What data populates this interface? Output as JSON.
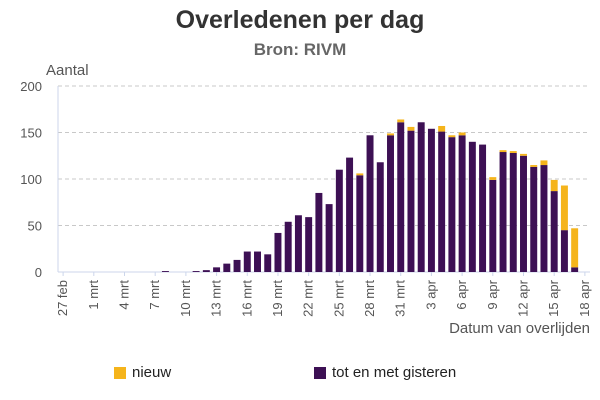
{
  "chart_data": {
    "type": "bar",
    "stacked": true,
    "title": "Overledenen per dag",
    "subtitle": "Bron: RIVM",
    "ylabel": "Aantal",
    "xlabel": "Datum van overlijden",
    "ylim": [
      0,
      200
    ],
    "yticks": [
      0,
      50,
      100,
      150,
      200
    ],
    "xtick_every": 3,
    "categories": [
      "27 feb",
      "28 feb",
      "29 feb",
      "1 mrt",
      "2 mrt",
      "3 mrt",
      "4 mrt",
      "5 mrt",
      "6 mrt",
      "7 mrt",
      "8 mrt",
      "9 mrt",
      "10 mrt",
      "11 mrt",
      "12 mrt",
      "13 mrt",
      "14 mrt",
      "15 mrt",
      "16 mrt",
      "17 mrt",
      "18 mrt",
      "19 mrt",
      "20 mrt",
      "21 mrt",
      "22 mrt",
      "23 mrt",
      "24 mrt",
      "25 mrt",
      "26 mrt",
      "27 mrt",
      "28 mrt",
      "29 mrt",
      "30 mrt",
      "31 mrt",
      "1 apr",
      "2 apr",
      "3 apr",
      "4 apr",
      "5 apr",
      "6 apr",
      "7 apr",
      "8 apr",
      "9 apr",
      "10 apr",
      "11 apr",
      "12 apr",
      "13 apr",
      "14 apr",
      "15 apr",
      "16 apr",
      "17 apr",
      "18 apr"
    ],
    "xtick_labels": [
      "27 feb",
      "1 mrt",
      "4 mrt",
      "7 mrt",
      "10 mrt",
      "13 mrt",
      "16 mrt",
      "19 mrt",
      "22 mrt",
      "25 mrt",
      "28 mrt",
      "31 mrt",
      "3 apr",
      "6 apr",
      "9 apr",
      "12 apr",
      "15 apr",
      "18 apr"
    ],
    "series": [
      {
        "name": "tot en met gisteren",
        "color": "#3d1054",
        "values": [
          0,
          0,
          0,
          0,
          0,
          0,
          0,
          0,
          0,
          0,
          1,
          0,
          0,
          1,
          2,
          5,
          9,
          13,
          22,
          22,
          19,
          42,
          54,
          61,
          59,
          85,
          73,
          110,
          123,
          104,
          147,
          118,
          147,
          161,
          152,
          161,
          154,
          151,
          145,
          147,
          140,
          137,
          99,
          129,
          128,
          125,
          113,
          115,
          87,
          45,
          5,
          0
        ]
      },
      {
        "name": "nieuw",
        "color": "#f5b41b",
        "values": [
          0,
          0,
          0,
          0,
          0,
          0,
          0,
          0,
          0,
          0,
          0,
          0,
          0,
          0,
          0,
          0,
          0,
          0,
          0,
          0,
          0,
          0,
          0,
          0,
          0,
          0,
          0,
          0,
          0,
          2,
          0,
          0,
          2,
          3,
          4,
          0,
          0,
          6,
          2,
          3,
          0,
          0,
          3,
          2,
          2,
          2,
          2,
          5,
          12,
          48,
          42,
          0
        ]
      }
    ],
    "legend": [
      "nieuw",
      "tot en met gisteren"
    ],
    "legend_position": "bottom",
    "grid": true
  }
}
